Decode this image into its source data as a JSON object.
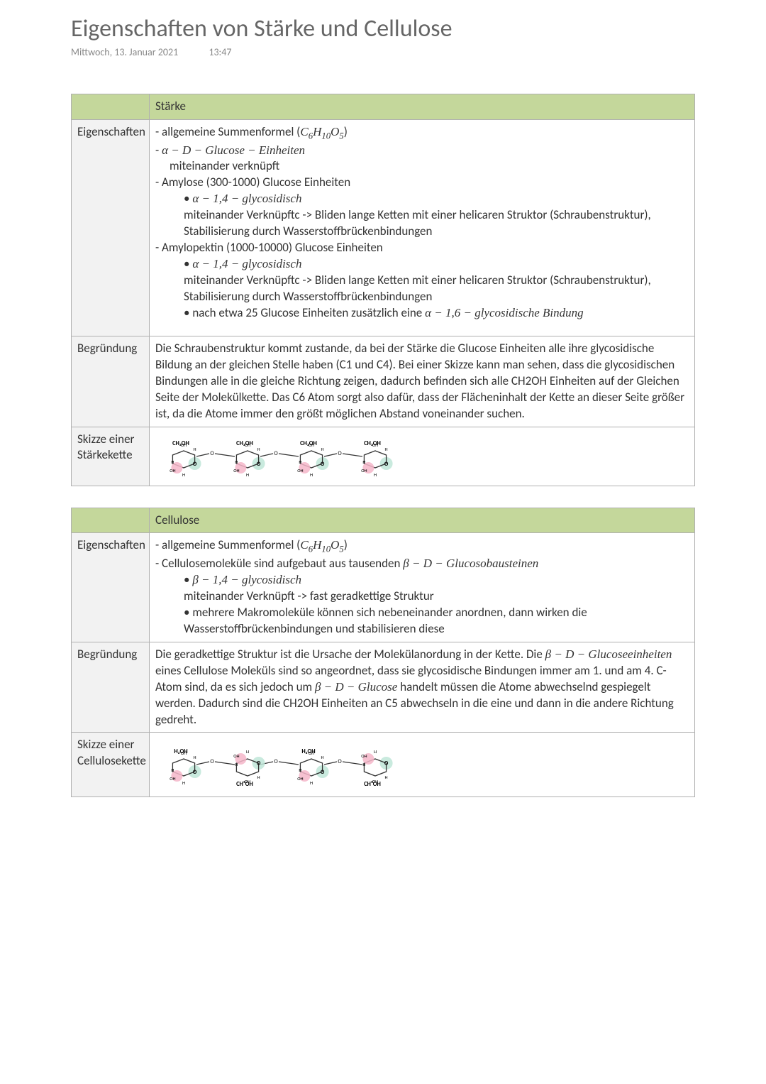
{
  "page": {
    "title": "Eigenschaften von Stärke und Cellulose",
    "date": "Mittwoch, 13. Januar 2021",
    "time": "13:47",
    "background_color": "#ffffff",
    "title_color": "#666666",
    "meta_color": "#888888"
  },
  "tables": {
    "header_bg": "#c4d79b",
    "label_bg": "#f2f2f2",
    "border_color": "#b0b0b0",
    "body_fontsize": 17
  },
  "staerke": {
    "header_blank": "",
    "header_title": "Stärke",
    "row1_label": "Eigenschaften",
    "row1_lines": {
      "l1a": "- allgemeine Summenformel (",
      "l1b": ")",
      "l2a": "- ",
      "l2b_pre": "α − D − Glucose − Einheiten",
      "l3": "miteinander verknüpft",
      "l4": "- Amylose (300-1000) Glucose Einheiten",
      "l5_pre": "α − 1,4 − glycosidisch",
      "l6": "miteinander Verknüpftc -> Bliden lange Ketten mit einer helicaren Struktor (Schraubenstruktur), Stabilisierung durch Wasserstoffbrückenbindungen",
      "l7": "- Amylopektin (1000-10000) Glucose Einheiten",
      "l8_pre": "α − 1,4 − glycosidisch",
      "l9": "miteinander Verknüpftc -> Bliden lange Ketten mit einer helicaren Struktor (Schraubenstruktur), Stabilisierung durch Wasserstoffbrückenbindungen",
      "l10a": "nach etwa 25 Glucose Einheiten zusätzlich eine ",
      "l10b": "α − 1,6 − glycosidische Bindung"
    },
    "row2_label": "Begründung",
    "row2_text": "Die Schraubenstruktur kommt zustande, da bei der Stärke die Glucose Einheiten alle ihre glycosidische Bildung an der gleichen Stelle haben (C1 und C4). Bei einer Skizze kann man sehen, dass die glycosidischen Bindungen alle in die gleiche Richtung zeigen, dadurch befinden sich alle CH2OH Einheiten auf der Gleichen Seite der Molekülkette. Das C6 Atom sorgt also dafür, dass der Flächeninhalt der Kette an dieser Seite größer ist, da die Atome immer den größt möglichen Abstand voneinander suchen.",
    "row3_label": "Skizze einer Stärkekette",
    "sketch": {
      "units": 4,
      "ring_color": "#333333",
      "o_highlight": "#bfe6d8",
      "oh_highlight": "#f4b6c9",
      "top_label": "CH₂OH",
      "flip_alternate": false
    }
  },
  "cellulose": {
    "header_blank": "",
    "header_title": "Cellulose",
    "row1_label": "Eigenschaften",
    "row1_lines": {
      "l1a": "- allgemeine Summenformel (",
      "l1b": ")",
      "l2a": "- Cellulosemoleküle sind aufgebaut aus tausenden ",
      "l2b": "β − D − Glucosobausteinen",
      "l3_pre": "β − 1,4 − glycosidisch",
      "l4": "miteinander Verknüpft -> fast geradkettige Struktur",
      "l5": "mehrere Makromoleküle können sich nebeneinander anordnen, dann wirken die Wasserstoffbrückenbindungen und stabilisieren diese"
    },
    "row2_label": "Begründung",
    "row2_parts": {
      "p1": "Die geradkettige Struktur ist die Ursache der Molekülanordung in der Kette. Die ",
      "p2": "β − D − Glucoseeinheiten",
      "p3": " eines Cellulose Moleküls sind so angeordnet, dass sie glycosidische Bindungen immer am 1. und am 4. C-Atom sind, da es sich jedoch um ",
      "p4": "β − D − Glucose",
      "p5": " handelt müssen die Atome abwechselnd gespiegelt werden. Dadurch sind die CH2OH Einheiten an C5 abwechseln in die eine und dann in die andere Richtung gedreht."
    },
    "row3_label": "Skizze einer Cellulosekette",
    "sketch": {
      "units": 4,
      "ring_color": "#333333",
      "o_highlight": "#bfe6d8",
      "oh_highlight": "#f4b6c9",
      "top_label": "H₂OH",
      "bottom_label": "CH₂OH",
      "flip_alternate": true
    }
  },
  "formula": {
    "pre": "C",
    "s1": "6",
    "mid1": "H",
    "s2": "10",
    "mid2": "O",
    "s3": "5"
  }
}
